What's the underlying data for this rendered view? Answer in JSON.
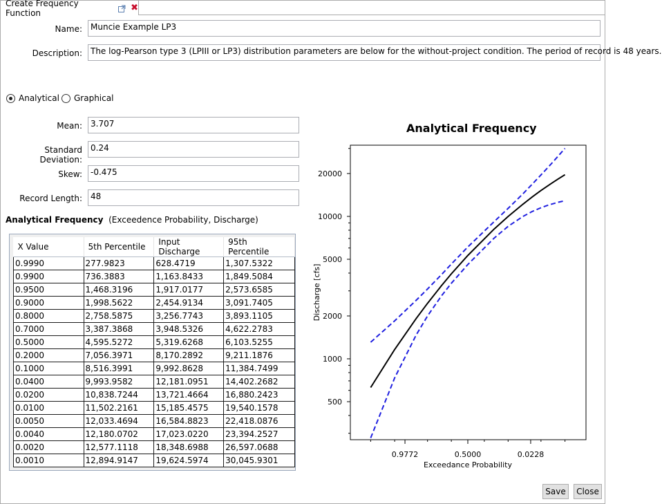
{
  "tab": {
    "title": "Create Frequency Function"
  },
  "form": {
    "name_label": "Name:",
    "name_value": "Muncie Example LP3",
    "description_label": "Description:",
    "description_value": "The log-Pearson type 3 (LPIII or LP3) distribution parameters are below for the without-project condition. The period of record is 48 years.",
    "mode_analytical": "Analytical",
    "mode_graphical": "Graphical",
    "mode_selected": "Analytical",
    "mean_label": "Mean:",
    "mean_value": "3.707",
    "std_label": "Standard Deviation:",
    "std_value": "0.24",
    "skew_label": "Skew:",
    "skew_value": "-0.475",
    "record_label": "Record Length:",
    "record_value": "48"
  },
  "table": {
    "title_bold": "Analytical Frequency",
    "title_rest": "(Exceedence Probability, Discharge)",
    "headers": [
      "X Value",
      "5th Percentile",
      "Input Discharge",
      "95th Percentile"
    ],
    "rows": [
      [
        "0.9990",
        "277.9823",
        "628.4719",
        "1,307.5322"
      ],
      [
        "0.9900",
        "736.3883",
        "1,163.8433",
        "1,849.5084"
      ],
      [
        "0.9500",
        "1,468.3196",
        "1,917.0177",
        "2,573.6585"
      ],
      [
        "0.9000",
        "1,998.5622",
        "2,454.9134",
        "3,091.7405"
      ],
      [
        "0.8000",
        "2,758.5875",
        "3,256.7743",
        "3,893.1105"
      ],
      [
        "0.7000",
        "3,387.3868",
        "3,948.5326",
        "4,622.2783"
      ],
      [
        "0.5000",
        "4,595.5272",
        "5,319.6268",
        "6,103.5255"
      ],
      [
        "0.2000",
        "7,056.3971",
        "8,170.2892",
        "9,211.1876"
      ],
      [
        "0.1000",
        "8,516.3991",
        "9,992.8628",
        "11,384.7499"
      ],
      [
        "0.0400",
        "9,993.9582",
        "12,181.0951",
        "14,402.2682"
      ],
      [
        "0.0200",
        "10,838.7244",
        "13,721.4664",
        "16,880.2423"
      ],
      [
        "0.0100",
        "11,502.2161",
        "15,185.4575",
        "19,540.1578"
      ],
      [
        "0.0050",
        "12,033.4694",
        "16,584.8823",
        "22,418.0876"
      ],
      [
        "0.0040",
        "12,180.0702",
        "17,023.0220",
        "23,394.2527"
      ],
      [
        "0.0020",
        "12,577.1118",
        "18,348.6988",
        "26,597.0688"
      ],
      [
        "0.0010",
        "12,894.9147",
        "19,624.5974",
        "30,045.9301"
      ]
    ]
  },
  "chart_data": {
    "type": "line",
    "title": "Analytical Frequency",
    "xlabel": "Exceedance Probability",
    "ylabel": "Discharge [cfs]",
    "x_scale": "normal-probability",
    "y_scale": "log",
    "x_tick_labels": [
      "0.9772",
      "0.5000",
      "0.0228"
    ],
    "y_ticks": [
      500,
      1000,
      2000,
      5000,
      10000,
      20000
    ],
    "y_tick_labels": [
      "500",
      "1000",
      "2000",
      "5000",
      "10000",
      "20000"
    ],
    "x": [
      0.999,
      0.99,
      0.95,
      0.9,
      0.8,
      0.7,
      0.5,
      0.2,
      0.1,
      0.04,
      0.02,
      0.01,
      0.005,
      0.004,
      0.002,
      0.001
    ],
    "series": [
      {
        "role": "input",
        "color": "#000000",
        "style": "solid",
        "values": [
          628.47,
          1163.84,
          1917.02,
          2454.91,
          3256.77,
          3948.53,
          5319.63,
          8170.29,
          9992.86,
          12181.1,
          13721.47,
          15185.46,
          16584.88,
          17023.02,
          18348.7,
          19624.6
        ]
      },
      {
        "role": "5th",
        "color": "#1f1fe0",
        "style": "dashed",
        "values": [
          277.98,
          736.39,
          1468.32,
          1998.56,
          2758.59,
          3387.39,
          4595.53,
          7056.4,
          8516.4,
          9993.96,
          10838.72,
          11502.22,
          12033.47,
          12180.07,
          12577.11,
          12894.91
        ]
      },
      {
        "role": "95th",
        "color": "#1f1fe0",
        "style": "dashed",
        "values": [
          1307.53,
          1849.51,
          2573.66,
          3091.74,
          3893.11,
          4622.28,
          6103.53,
          9211.19,
          11384.75,
          14402.27,
          16880.24,
          19540.16,
          22418.09,
          23394.25,
          26597.07,
          30045.93
        ]
      }
    ]
  },
  "buttons": {
    "save": "Save",
    "close": "Close"
  }
}
